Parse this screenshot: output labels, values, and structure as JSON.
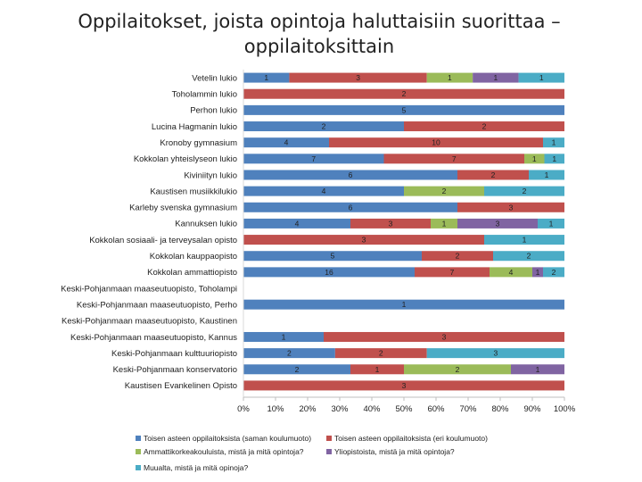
{
  "chart_data": {
    "type": "bar",
    "orientation": "horizontal",
    "stacked": "percent",
    "title_lines": [
      "Oppilaitokset, joista opintoja haluttaisiin suorittaa –",
      "oppilaitoksittain"
    ],
    "categories": [
      "Vetelin lukio",
      "Toholammin lukio",
      "Perhon lukio",
      "Lucina Hagmanin lukio",
      "Kronoby gymnasium",
      "Kokkolan yhteislyseon lukio",
      "Kiviniityn lukio",
      "Kaustisen musiikkilukio",
      "Karleby svenska gymnasium",
      "Kannuksen lukio",
      "Kokkolan sosiaali- ja terveysalan opisto",
      "Kokkolan kauppaopisto",
      "Kokkolan ammattiopisto",
      "Keski-Pohjanmaan maaseutuopisto, Toholampi",
      "Keski-Pohjanmaan maaseutuopisto, Perho",
      "Keski-Pohjanmaan maaseutuopisto, Kaustinen",
      "Keski-Pohjanmaan maaseutuopisto, Kannus",
      "Keski-Pohjanmaan kulttuuriopisto",
      "Keski-Pohjanmaan konservatorio",
      "Kaustisen Evankelinen Opisto"
    ],
    "series": [
      {
        "name": "Toisen asteen oppilaitoksista (saman koulumuoto)",
        "color": "#4F81BD",
        "values": [
          1,
          0,
          5,
          2,
          4,
          7,
          6,
          4,
          6,
          4,
          0,
          5,
          16,
          0,
          1,
          0,
          1,
          2,
          2,
          0
        ]
      },
      {
        "name": "Toisen asteen oppilaitoksista (eri koulumuoto)",
        "color": "#C0504D",
        "values": [
          3,
          2,
          0,
          2,
          10,
          7,
          2,
          0,
          3,
          3,
          3,
          2,
          7,
          0,
          0,
          0,
          3,
          2,
          1,
          3
        ]
      },
      {
        "name": "Ammattikorkeakouluista, mistä ja mitä opintoja?",
        "color": "#9BBB59",
        "values": [
          1,
          0,
          0,
          0,
          0,
          1,
          0,
          2,
          0,
          1,
          0,
          0,
          4,
          0,
          0,
          0,
          0,
          0,
          2,
          0
        ]
      },
      {
        "name": "Yliopistoista, mistä ja mitä opintoja?",
        "color": "#8064A2",
        "values": [
          1,
          0,
          0,
          0,
          0,
          0,
          0,
          0,
          0,
          3,
          0,
          0,
          1,
          0,
          0,
          0,
          0,
          0,
          1,
          0
        ]
      },
      {
        "name": "Muualta, mistä ja mitä opinoja?",
        "color": "#4BACC6",
        "values": [
          1,
          0,
          0,
          0,
          1,
          1,
          1,
          2,
          0,
          1,
          1,
          2,
          2,
          0,
          0,
          0,
          0,
          3,
          0,
          0
        ]
      }
    ],
    "xlim": [
      0,
      100
    ],
    "xticks": [
      "0%",
      "10%",
      "20%",
      "30%",
      "40%",
      "50%",
      "60%",
      "70%",
      "80%",
      "90%",
      "100%"
    ],
    "legend_position": "bottom",
    "grid": false
  }
}
